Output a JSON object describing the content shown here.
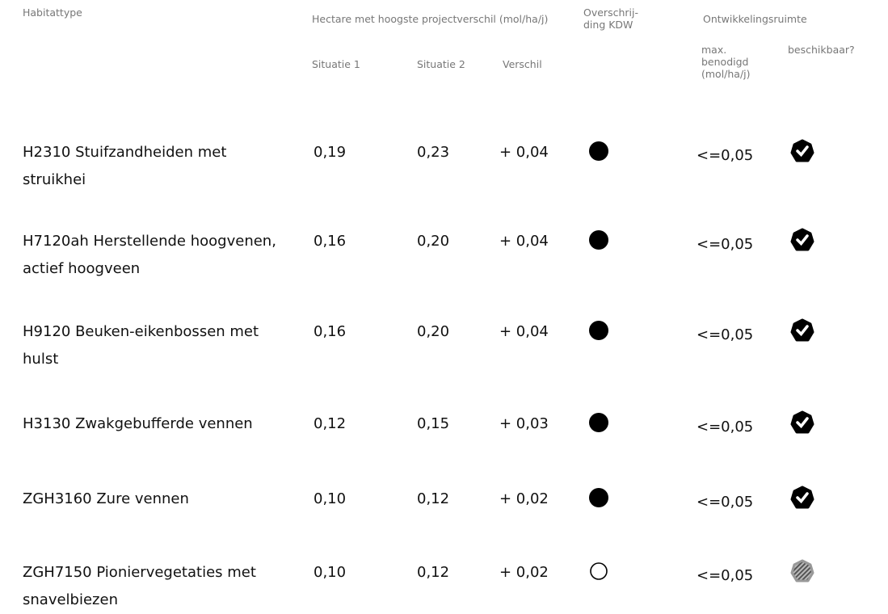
{
  "header": {
    "habitat": "Habitattype",
    "hectare": "Hectare met hoogste projectverschil (mol/ha/j)",
    "situatie1": "Situatie 1",
    "situatie2": "Situatie 2",
    "verschil": "Verschil",
    "kdw": "Overschrij-ding KDW",
    "ontwikkelingsruimte": "Ontwikkelingsruimte",
    "max": "max. benodigd (mol/ha/j)",
    "beschikbaar": "beschikbaar?"
  },
  "table": {
    "rows": [
      [
        "H2310 Stuifzandheiden met struikhei",
        "0,19",
        "0,23",
        "+ 0,04",
        "<=0,05"
      ],
      [
        "H7120ah Herstellende hoogvenen, actief hoogveen",
        "0,16",
        "0,20",
        "+ 0,04",
        "<=0,05"
      ],
      [
        "H9120 Beuken-eikenbossen met hulst",
        "0,16",
        "0,20",
        "+ 0,04",
        "<=0,05"
      ],
      [
        "H3130 Zwakgebufferde vennen",
        "0,12",
        "0,15",
        "+ 0,03",
        "<=0,05"
      ],
      [
        "ZGH3160 Zure vennen",
        "0,10",
        "0,12",
        "+ 0,02",
        "<=0,05"
      ],
      [
        "ZGH7150 Pioniervegetaties met snavelbiezen",
        "0,10",
        "0,12",
        "+ 0,02",
        "<=0,05"
      ]
    ]
  }
}
